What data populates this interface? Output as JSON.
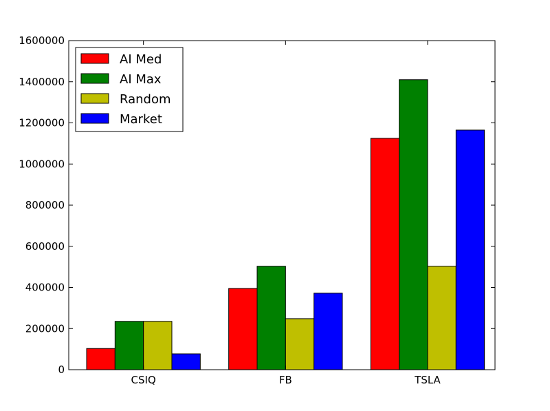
{
  "chart_data": {
    "type": "bar",
    "title": "",
    "xlabel": "",
    "ylabel": "",
    "categories": [
      "CSIQ",
      "FB",
      "TSLA"
    ],
    "ylim": [
      0,
      1600000
    ],
    "yticks": [
      0,
      200000,
      400000,
      600000,
      800000,
      1000000,
      1200000,
      1400000,
      1600000
    ],
    "grid": false,
    "legend_position": "top-left",
    "series": [
      {
        "name": "AI Med",
        "color": "#ff0000",
        "values": [
          103000,
          395000,
          1125000
        ]
      },
      {
        "name": "AI Max",
        "color": "#008000",
        "values": [
          235000,
          503000,
          1410000
        ]
      },
      {
        "name": "Random",
        "color": "#bfbf00",
        "values": [
          235000,
          248000,
          503000
        ]
      },
      {
        "name": "Market",
        "color": "#0000ff",
        "values": [
          77000,
          372000,
          1165000
        ]
      }
    ]
  }
}
